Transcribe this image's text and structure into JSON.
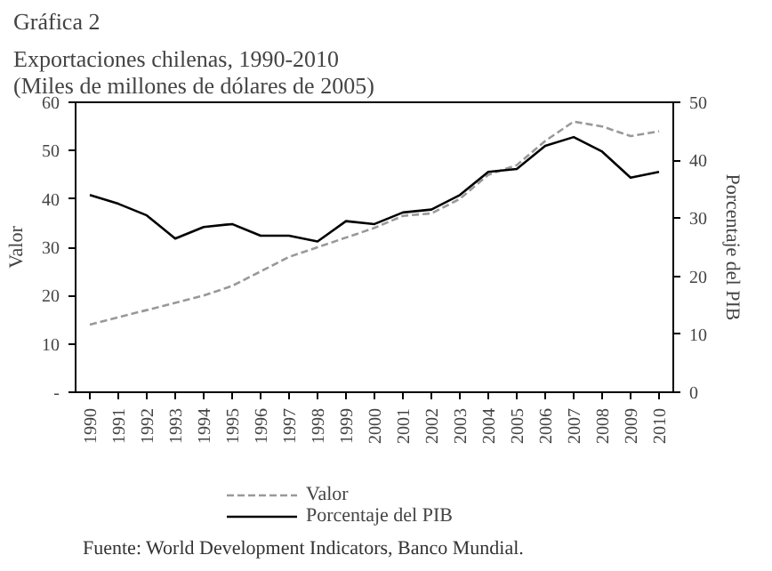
{
  "chart_data": {
    "type": "line",
    "title": "Gráfica 2",
    "subtitle": "Exportaciones chilenas, 1990-2010\n(Miles de millones de dólares de 2005)",
    "categories": [
      "1990",
      "1991",
      "1992",
      "1993",
      "1994",
      "1995",
      "1996",
      "1997",
      "1998",
      "1999",
      "2000",
      "2001",
      "2002",
      "2003",
      "2004",
      "2005",
      "2006",
      "2007",
      "2008",
      "2009",
      "2010"
    ],
    "series": [
      {
        "name": "Valor",
        "color": "#999999",
        "line_style": "dashed",
        "values": [
          14,
          15.5,
          17,
          18.5,
          20,
          22,
          25,
          28,
          30,
          32,
          34,
          36.5,
          37,
          40,
          45,
          47,
          52,
          56,
          55,
          53,
          54
        ]
      },
      {
        "name": "Porcentaje del PIB",
        "color": "#000000",
        "line_style": "solid",
        "axis": "y2",
        "values": [
          34,
          32.5,
          30.5,
          26.5,
          28.5,
          29,
          27,
          27,
          26,
          29.5,
          29,
          31,
          31.5,
          34,
          38,
          38.5,
          42.5,
          44,
          41.5,
          37,
          38
        ]
      }
    ],
    "ylabel": "Valor",
    "y2label": "Porcentaje del PIB",
    "ylim": [
      0,
      60
    ],
    "yticks": [
      {
        "value": 0,
        "label": "-"
      },
      10,
      20,
      30,
      40,
      50,
      60
    ],
    "y2lim": [
      0,
      50
    ],
    "y2ticks": [
      0,
      10,
      20,
      30,
      40,
      50
    ],
    "grid": false,
    "legend": "bottom",
    "marker": "none",
    "annotations": [
      "Fuente: World Development Indicators, Banco Mundial."
    ]
  }
}
